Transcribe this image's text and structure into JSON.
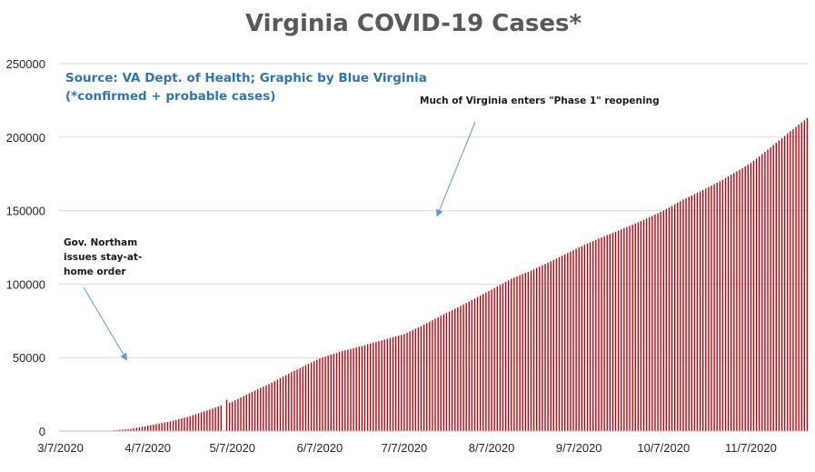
{
  "chart_data": {
    "type": "bar",
    "title": "Virginia COVID-19 Cases*",
    "source_line1": "Source: VA Dept. of Health; Graphic by Blue Virginia",
    "source_line2": "(*confirmed + probable cases)",
    "xlabel": "",
    "ylabel": "",
    "ylim": [
      0,
      250000
    ],
    "grid": true,
    "bar_color": "#c0000b",
    "grid_color": "#d9d9d9",
    "arrow_color": "#5b9bd5",
    "y_ticks": [
      "0",
      "50000",
      "100000",
      "150000",
      "200000",
      "250000"
    ],
    "x_ticks": [
      "3/7/2020",
      "4/7/2020",
      "5/7/2020",
      "6/7/2020",
      "7/7/2020",
      "8/7/2020",
      "9/7/2020",
      "10/7/2020",
      "11/7/2020"
    ],
    "date_start": "3/7/2020",
    "date_end": "11/27/2020",
    "values_note": "daily cumulative cases read at monthly anchor dates",
    "anchors": [
      {
        "date": "3/7/2020",
        "value": 0
      },
      {
        "date": "3/20/2020",
        "value": 100
      },
      {
        "date": "3/25/2020",
        "value": 390
      },
      {
        "date": "4/1/2020",
        "value": 1500
      },
      {
        "date": "4/7/2020",
        "value": 3600
      },
      {
        "date": "4/14/2020",
        "value": 6200
      },
      {
        "date": "4/21/2020",
        "value": 9600
      },
      {
        "date": "4/28/2020",
        "value": 14000
      },
      {
        "date": "5/7/2020",
        "value": 20000
      },
      {
        "date": "5/14/2020",
        "value": 26700
      },
      {
        "date": "5/21/2020",
        "value": 32900
      },
      {
        "date": "5/28/2020",
        "value": 40100
      },
      {
        "date": "6/7/2020",
        "value": 49400
      },
      {
        "date": "6/14/2020",
        "value": 53900
      },
      {
        "date": "6/21/2020",
        "value": 57400
      },
      {
        "date": "6/28/2020",
        "value": 61200
      },
      {
        "date": "7/7/2020",
        "value": 66000
      },
      {
        "date": "7/14/2020",
        "value": 72400
      },
      {
        "date": "7/21/2020",
        "value": 79400
      },
      {
        "date": "7/28/2020",
        "value": 86100
      },
      {
        "date": "8/7/2020",
        "value": 96300
      },
      {
        "date": "8/14/2020",
        "value": 103600
      },
      {
        "date": "8/21/2020",
        "value": 109200
      },
      {
        "date": "8/28/2020",
        "value": 115500
      },
      {
        "date": "9/7/2020",
        "value": 125000
      },
      {
        "date": "9/14/2020",
        "value": 131000
      },
      {
        "date": "9/21/2020",
        "value": 136400
      },
      {
        "date": "9/28/2020",
        "value": 142000
      },
      {
        "date": "10/7/2020",
        "value": 150000
      },
      {
        "date": "10/14/2020",
        "value": 157500
      },
      {
        "date": "10/21/2020",
        "value": 164000
      },
      {
        "date": "10/28/2020",
        "value": 171000
      },
      {
        "date": "11/7/2020",
        "value": 182400
      },
      {
        "date": "11/14/2020",
        "value": 193000
      },
      {
        "date": "11/21/2020",
        "value": 204000
      },
      {
        "date": "11/27/2020",
        "value": 213000
      }
    ],
    "outliers": [
      {
        "date": "5/4/2020",
        "value": 0
      },
      {
        "date": "5/5/2020",
        "value": 21300
      }
    ],
    "annotations": [
      {
        "id": "phase1",
        "text": "Much of Virginia enters \"Phase 1\" reopening",
        "point_date": "7/19/2020",
        "point_value": 148000
      },
      {
        "id": "stayhome",
        "lines": [
          "Gov. Northam",
          "issues stay-at-",
          "home order"
        ],
        "point_date": "3/30/2020",
        "point_value": 50000
      }
    ]
  }
}
